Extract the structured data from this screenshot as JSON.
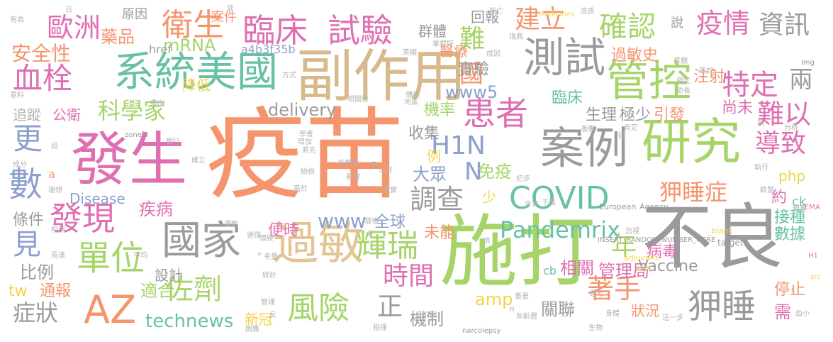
{
  "palette": {
    "orange": "#f4956e",
    "green": "#a6d469",
    "gray": "#9b9b9b",
    "pink": "#e06fb2",
    "tan": "#d7b98b",
    "blue": "#8c9fcd",
    "teal": "#67c2a3",
    "yellow": "#f3d34d",
    "beige": "#e5c493",
    "lightgray": "#b3b3b3"
  },
  "words": [
    {
      "text": "疫苗",
      "color": "orange"
    },
    {
      "text": "施打",
      "color": "green"
    },
    {
      "text": "不良",
      "color": "gray"
    },
    {
      "text": "發生",
      "color": "pink"
    },
    {
      "text": "副作用",
      "color": "tan"
    },
    {
      "text": "系統美國",
      "color": "teal"
    },
    {
      "text": "研究",
      "color": "green"
    },
    {
      "text": "案例",
      "color": "gray"
    },
    {
      "text": "過敏",
      "color": "beige"
    },
    {
      "text": "國家",
      "color": "gray"
    },
    {
      "text": "測試",
      "color": "gray"
    },
    {
      "text": "管控",
      "color": "green"
    },
    {
      "text": "AZ",
      "color": "orange"
    },
    {
      "text": "COVID",
      "color": "teal"
    },
    {
      "text": "臨床",
      "color": "pink"
    },
    {
      "text": "試驗",
      "color": "pink"
    },
    {
      "text": "單位",
      "color": "green"
    },
    {
      "text": "發現",
      "color": "pink"
    },
    {
      "text": "風險",
      "color": "green"
    },
    {
      "text": "患者",
      "color": "pink"
    },
    {
      "text": "衛生",
      "color": "orange"
    },
    {
      "text": "歐洲",
      "color": "pink"
    },
    {
      "text": "血栓",
      "color": "pink"
    },
    {
      "text": "數",
      "color": "blue"
    },
    {
      "text": "更",
      "color": "blue"
    },
    {
      "text": "見",
      "color": "blue"
    },
    {
      "text": "確認",
      "color": "green"
    },
    {
      "text": "疫情",
      "color": "pink"
    },
    {
      "text": "資訊",
      "color": "gray"
    },
    {
      "text": "特定",
      "color": "pink"
    },
    {
      "text": "難以",
      "color": "pink"
    },
    {
      "text": "導致",
      "color": "pink"
    },
    {
      "text": "狎睡症",
      "color": "orange"
    },
    {
      "text": "狎睡",
      "color": "gray"
    },
    {
      "text": "Pandemrix",
      "color": "teal"
    },
    {
      "text": "輝瑞",
      "color": "green"
    },
    {
      "text": "調查",
      "color": "gray"
    },
    {
      "text": "時間",
      "color": "pink"
    },
    {
      "text": "佐劑",
      "color": "green"
    },
    {
      "text": "H1N",
      "color": "blue"
    },
    {
      "text": "N",
      "color": "blue"
    },
    {
      "text": "國",
      "color": "orange"
    },
    {
      "text": "著手",
      "color": "orange"
    },
    {
      "text": "科學家",
      "color": "green"
    },
    {
      "text": "建立",
      "color": "orange"
    },
    {
      "text": "安全性",
      "color": "orange"
    },
    {
      "text": "藥品",
      "color": "orange"
    },
    {
      "text": "難",
      "color": "green"
    },
    {
      "text": "年",
      "color": "green"
    },
    {
      "text": "正",
      "color": "gray"
    },
    {
      "text": "technews",
      "color": "teal"
    },
    {
      "text": "兩",
      "color": "gray"
    },
    {
      "text": "症狀",
      "color": "gray"
    },
    {
      "text": "疾病",
      "color": "pink"
    },
    {
      "text": "www",
      "color": "blue"
    },
    {
      "text": "www5",
      "color": "blue"
    },
    {
      "text": "delivery",
      "color": "gray"
    },
    {
      "text": "免疫",
      "color": "green"
    },
    {
      "text": "大眾",
      "color": "blue"
    },
    {
      "text": "mRNA",
      "color": "green"
    },
    {
      "text": "條件",
      "color": "gray"
    },
    {
      "text": "Disease",
      "color": "blue"
    },
    {
      "text": "比例",
      "color": "gray"
    },
    {
      "text": "機制",
      "color": "gray"
    },
    {
      "text": "全球",
      "color": "blue"
    },
    {
      "text": "未能",
      "color": "orange"
    },
    {
      "text": "便時",
      "color": "pink"
    },
    {
      "text": "適合",
      "color": "green"
    },
    {
      "text": "設計",
      "color": "gray"
    },
    {
      "text": "通報",
      "color": "orange"
    },
    {
      "text": "tw",
      "color": "yellow"
    },
    {
      "text": "新冠",
      "color": "yellow"
    },
    {
      "text": "amp",
      "color": "yellow"
    },
    {
      "text": "相關",
      "color": "pink"
    },
    {
      "text": "管理局",
      "color": "pink"
    },
    {
      "text": "病毒",
      "color": "pink"
    },
    {
      "text": "Vaccine",
      "color": "gray"
    },
    {
      "text": "狀況",
      "color": "orange"
    },
    {
      "text": "關聯",
      "color": "gray"
    },
    {
      "text": "停止",
      "color": "orange"
    },
    {
      "text": "需",
      "color": "pink"
    },
    {
      "text": "接種",
      "color": "teal"
    },
    {
      "text": "數據",
      "color": "teal"
    },
    {
      "text": "約",
      "color": "pink"
    },
    {
      "text": "ck",
      "color": "teal"
    },
    {
      "text": "php",
      "color": "yellow"
    },
    {
      "text": "生理",
      "color": "gray"
    },
    {
      "text": "極少",
      "color": "gray"
    },
    {
      "text": "引發",
      "color": "orange"
    },
    {
      "text": "尚未",
      "color": "pink"
    },
    {
      "text": "注射",
      "color": "orange"
    },
    {
      "text": "過敏史",
      "color": "orange"
    },
    {
      "text": "臨床",
      "color": "teal"
    },
    {
      "text": "機率",
      "color": "green"
    },
    {
      "text": "收集",
      "color": "gray"
    },
    {
      "text": "例",
      "color": "yellow"
    },
    {
      "text": "實驗",
      "color": "gray"
    },
    {
      "text": "醫療",
      "color": "orange"
    },
    {
      "text": "回報",
      "color": "gray"
    },
    {
      "text": "群體",
      "color": "gray"
    },
    {
      "text": "原因",
      "color": "gray"
    },
    {
      "text": "案件",
      "color": "orange"
    },
    {
      "text": "href",
      "color": "gray"
    },
    {
      "text": "a4b3f35b",
      "color": "blue"
    },
    {
      "text": "降低",
      "color": "yellow"
    },
    {
      "text": "公衛",
      "color": "pink"
    },
    {
      "text": "追蹤",
      "color": "lightgray"
    },
    {
      "text": "少",
      "color": "yellow"
    },
    {
      "text": "European",
      "color": "gray"
    },
    {
      "text": "Agency",
      "color": "gray"
    },
    {
      "text": "Medicines",
      "color": "yellow"
    },
    {
      "text": "INSERT_RANDOM_NUMBER_HERE",
      "color": "gray"
    },
    {
      "text": "adjuvant",
      "color": "yellow"
    },
    {
      "text": "narcolepsy",
      "color": "gray"
    },
    {
      "text": "_blank",
      "color": "yellow"
    },
    {
      "text": "target",
      "color": "gray"
    },
    {
      "text": "img",
      "color": "gray"
    },
    {
      "text": "src",
      "color": "yellow"
    },
    {
      "text": "EMA",
      "color": "pink"
    },
    {
      "text": "H1",
      "color": "pink"
    },
    {
      "text": "cb",
      "color": "teal"
    },
    {
      "text": "zoneid",
      "color": "gray"
    },
    {
      "text": "avw",
      "color": "yellow"
    },
    {
      "text": "說",
      "color": "gray"
    },
    {
      "text": "a",
      "color": "orange"
    },
    {
      "text": "有為",
      "color": "lightgray"
    },
    {
      "text": "意料",
      "color": "lightgray"
    },
    {
      "text": "成分",
      "color": "lightgray"
    },
    {
      "text": "理想",
      "color": "lightgray"
    },
    {
      "text": "長達",
      "color": "lightgray"
    },
    {
      "text": "段",
      "color": "lightgray"
    },
    {
      "text": "指出",
      "color": "lightgray"
    },
    {
      "text": "實行",
      "color": "lightgray"
    },
    {
      "text": "確立",
      "color": "lightgray"
    },
    {
      "text": "相關性",
      "color": "lightgray"
    },
    {
      "text": "地區",
      "color": "lightgray"
    },
    {
      "text": "傳染",
      "color": "lightgray"
    },
    {
      "text": "學者",
      "color": "lightgray"
    },
    {
      "text": "增加",
      "color": "lightgray"
    },
    {
      "text": "原先",
      "color": "lightgray"
    },
    {
      "text": "平衡性",
      "color": "lightgray"
    },
    {
      "text": "公共",
      "color": "lightgray"
    },
    {
      "text": "紛紛",
      "color": "lightgray"
    },
    {
      "text": "高於",
      "color": "lightgray"
    },
    {
      "text": "影響",
      "color": "lightgray"
    },
    {
      "text": "證實",
      "color": "lightgray"
    },
    {
      "text": "初步",
      "color": "lightgray"
    },
    {
      "text": "千萬",
      "color": "lightgray"
    },
    {
      "text": "含有",
      "color": "lightgray"
    },
    {
      "text": "運動",
      "color": "lightgray"
    },
    {
      "text": "懷疑",
      "color": "lightgray"
    },
    {
      "text": "選擇",
      "color": "lightgray"
    },
    {
      "text": "增強",
      "color": "lightgray"
    },
    {
      "text": "外",
      "color": "lightgray"
    },
    {
      "text": "供",
      "color": "lightgray"
    },
    {
      "text": "忽視",
      "color": "lightgray"
    },
    {
      "text": "統計",
      "color": "lightgray"
    },
    {
      "text": "考量",
      "color": "lightgray"
    },
    {
      "text": "平均",
      "color": "lightgray"
    },
    {
      "text": "相稱",
      "color": "lightgray"
    },
    {
      "text": "管理",
      "color": "lightgray"
    },
    {
      "text": "反",
      "color": "lightgray"
    },
    {
      "text": "週七",
      "color": "lightgray"
    },
    {
      "text": "重要",
      "color": "lightgray"
    },
    {
      "text": "身體",
      "color": "lightgray"
    },
    {
      "text": "生物",
      "color": "lightgray"
    },
    {
      "text": "困難",
      "color": "lightgray"
    },
    {
      "text": "指揮",
      "color": "lightgray"
    },
    {
      "text": "前例",
      "color": "lightgray"
    },
    {
      "text": "年齡層",
      "color": "lightgray"
    },
    {
      "text": "這一步",
      "color": "lightgray"
    },
    {
      "text": "血小",
      "color": "lightgray"
    },
    {
      "text": "執行",
      "color": "lightgray"
    },
    {
      "text": "歐盟",
      "color": "lightgray"
    },
    {
      "text": "現象",
      "color": "lightgray"
    },
    {
      "text": "分析",
      "color": "lightgray"
    },
    {
      "text": "板數",
      "color": "lightgray"
    },
    {
      "text": "前",
      "color": "lightgray"
    },
    {
      "text": "肯定",
      "color": "lightgray"
    },
    {
      "text": "鎖定",
      "color": "lightgray"
    },
    {
      "text": "助長",
      "color": "lightgray"
    },
    {
      "text": "等於",
      "color": "lightgray"
    },
    {
      "text": "意願",
      "color": "lightgray"
    },
    {
      "text": "方式",
      "color": "lightgray"
    },
    {
      "text": "英國",
      "color": "lightgray"
    },
    {
      "text": "成因",
      "color": "lightgray"
    },
    {
      "text": "死亡",
      "color": "lightgray"
    },
    {
      "text": "瑞典",
      "color": "lightgray"
    },
    {
      "text": "流感",
      "color": "lightgray"
    },
    {
      "text": "拿捏好",
      "color": "lightgray"
    },
    {
      "text": "日",
      "color": "lightgray"
    },
    {
      "text": "談",
      "color": "lightgray"
    },
    {
      "text": "未",
      "color": "lightgray"
    },
    {
      "text": "H",
      "color": "lightgray"
    },
    {
      "text": "c",
      "color": "lightgray"
    },
    {
      "text": "+",
      "color": "lightgray"
    },
    {
      "text": "短",
      "color": "lightgray"
    }
  ]
}
